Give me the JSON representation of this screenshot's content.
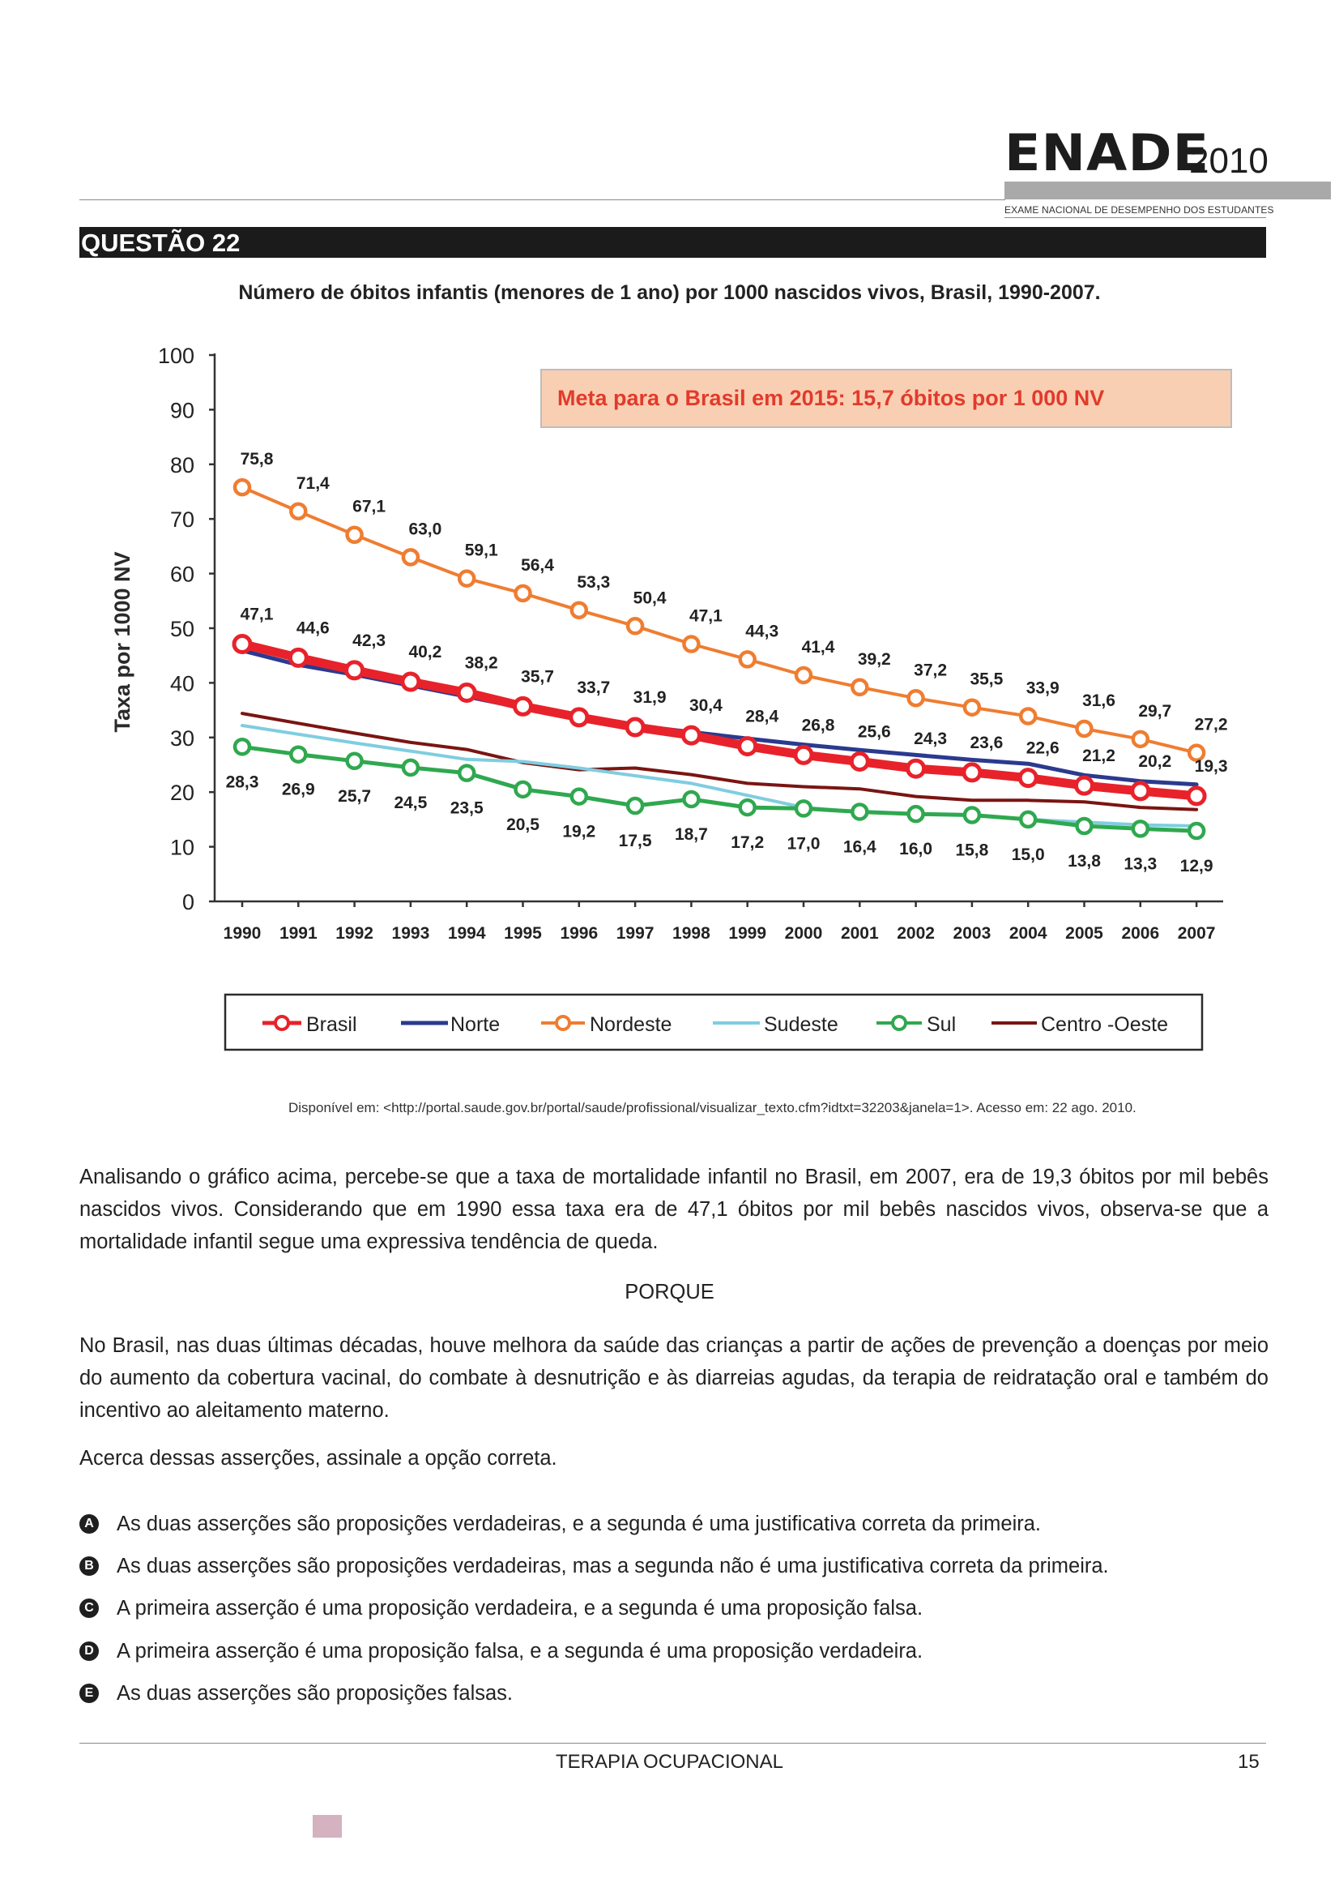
{
  "header": {
    "brand": "ENADE",
    "year": "2010",
    "subtitle": "EXAME NACIONAL DE DESEMPENHO DOS ESTUDANTES"
  },
  "question_label": "QUESTÃO 22",
  "chart_title": "Número de óbitos infantis (menores de 1 ano) por 1000 nascidos vivos, Brasil, 1990-2007.",
  "chart_data": {
    "type": "line",
    "title": "Número de óbitos infantis (menores de 1 ano) por 1000 nascidos vivos, Brasil, 1990-2007.",
    "ylabel": "Taxa por 1000 NV",
    "xlabel": "",
    "ylim": [
      0,
      100
    ],
    "yticks": [
      "0",
      "10",
      "20",
      "30",
      "40",
      "50",
      "60",
      "70",
      "80",
      "90",
      "100"
    ],
    "categories": [
      "1990",
      "1991",
      "1992",
      "1993",
      "1994",
      "1995",
      "1996",
      "1997",
      "1998",
      "1999",
      "2000",
      "2001",
      "2002",
      "2003",
      "2004",
      "2005",
      "2006",
      "2007"
    ],
    "annotation": "Meta para o Brasil em 2015: 15,7 óbitos por 1 000 NV",
    "legend_position": "bottom",
    "grid": false,
    "series": [
      {
        "name": "Brasil",
        "color": "#e8222a",
        "marker": "circle",
        "values": [
          47.1,
          44.6,
          42.3,
          40.2,
          38.2,
          35.7,
          33.7,
          31.9,
          30.4,
          28.4,
          26.8,
          25.6,
          24.3,
          23.6,
          22.6,
          21.2,
          20.2,
          19.3
        ],
        "labels": [
          "47,1",
          "44,6",
          "42,3",
          "40,2",
          "38,2",
          "35,7",
          "33,7",
          "31,9",
          "30,4",
          "28,4",
          "26,8",
          "25,6",
          "24,3",
          "23,6",
          "22,6",
          "21,2",
          "20,2",
          "19,3"
        ]
      },
      {
        "name": "Norte",
        "color": "#2b3a8f",
        "marker": "none",
        "values": [
          45.9,
          43.3,
          41.5,
          39.5,
          37.5,
          35.4,
          33.8,
          32.2,
          31.0,
          29.8,
          28.7,
          27.7,
          26.8,
          25.9,
          25.2,
          23.1,
          22.0,
          21.4
        ]
      },
      {
        "name": "Nordeste",
        "color": "#ef7d31",
        "marker": "circle",
        "values": [
          75.8,
          71.4,
          67.1,
          63.0,
          59.1,
          56.4,
          53.3,
          50.4,
          47.1,
          44.3,
          41.4,
          39.2,
          37.2,
          35.5,
          33.9,
          31.6,
          29.7,
          27.2
        ],
        "labels": [
          "75,8",
          "71,4",
          "67,1",
          "63,0",
          "59,1",
          "56,4",
          "53,3",
          "50,4",
          "47,1",
          "44,3",
          "41,4",
          "39,2",
          "37,2",
          "35,5",
          "33,9",
          "31,6",
          "29,7",
          "27,2"
        ]
      },
      {
        "name": "Sudeste",
        "color": "#7fcde0",
        "marker": "none",
        "values": [
          32.2,
          30.6,
          29.0,
          27.5,
          26.0,
          25.6,
          24.4,
          23.0,
          21.6,
          19.4,
          17.2,
          16.4,
          16.0,
          15.8,
          15.0,
          14.5,
          14.0,
          13.8
        ]
      },
      {
        "name": "Sul",
        "color": "#2fa84f",
        "marker": "circle",
        "values": [
          28.3,
          26.9,
          25.7,
          24.5,
          23.5,
          20.5,
          19.2,
          17.5,
          18.7,
          17.2,
          17.0,
          16.4,
          16.0,
          15.8,
          15.0,
          13.8,
          13.3,
          12.9
        ],
        "labels": [
          "28,3",
          "26,9",
          "25,7",
          "24,5",
          "23,5",
          "20,5",
          "19,2",
          "17,5",
          "18,7",
          "17,2",
          "17,0",
          "16,4",
          "16,0",
          "15,8",
          "15,0",
          "13,8",
          "13,3",
          "12,9"
        ]
      },
      {
        "name": "Centro-Oeste",
        "color": "#7a1512",
        "marker": "none",
        "values": [
          34.4,
          32.6,
          30.8,
          29.1,
          27.8,
          25.4,
          24.1,
          24.4,
          23.2,
          21.6,
          21.0,
          20.6,
          19.2,
          18.5,
          18.5,
          18.2,
          17.2,
          16.8
        ]
      }
    ]
  },
  "legend": {
    "brasil": "Brasil",
    "norte": "Norte",
    "nordeste": "Nordeste",
    "sudeste": "Sudeste",
    "sul": "Sul",
    "centro_oeste": "Centro -Oeste"
  },
  "source": "Disponível em: <http://portal.saude.gov.br/portal/saude/profissional/visualizar_texto.cfm?idtxt=32203&janela=1>.  Acesso em: 22 ago. 2010.",
  "paragraph_1": "Analisando o gráfico acima, percebe-se que a taxa de mortalidade infantil no Brasil, em 2007, era de 19,3 óbitos por mil bebês nascidos vivos. Considerando que em 1990 essa taxa era de 47,1 óbitos por mil bebês nascidos vivos, observa-se que a mortalidade infantil segue uma expressiva tendência de queda.",
  "connector": "PORQUE",
  "paragraph_2": "No Brasil, nas duas últimas décadas, houve melhora da saúde das crianças a partir de ações de prevenção a doenças por meio do aumento da cobertura vacinal, do combate à desnutrição e às diarreias agudas, da terapia de reidratação oral e também do incentivo ao aleitamento materno.",
  "instruction": "Acerca dessas asserções, assinale a opção correta.",
  "options": [
    {
      "letter": "A",
      "text": "As duas asserções são proposições verdadeiras, e a segunda é uma justificativa correta da primeira."
    },
    {
      "letter": "B",
      "text": "As duas asserções são proposições verdadeiras, mas a segunda não é uma justificativa correta da primeira."
    },
    {
      "letter": "C",
      "text": "A primeira asserção é uma proposição verdadeira, e a segunda é uma proposição falsa."
    },
    {
      "letter": "D",
      "text": "A primeira asserção é uma proposição falsa, e a segunda é uma proposição verdadeira."
    },
    {
      "letter": "E",
      "text": "As duas asserções são proposições falsas."
    }
  ],
  "footer": {
    "course": "TERAPIA OCUPACIONAL",
    "page": "15"
  }
}
